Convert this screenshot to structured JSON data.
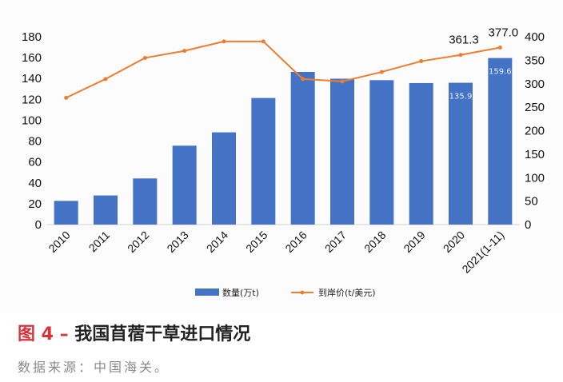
{
  "figure": {
    "number": "图 4 – ",
    "title": "我国苜蓿干草进口情况",
    "source": "数据来源：中国海关。"
  },
  "colors": {
    "bar": "#4472c4",
    "line": "#ed7d31"
  },
  "chart_data": {
    "type": "bar",
    "title": "",
    "categories": [
      "2010",
      "2011",
      "2012",
      "2013",
      "2014",
      "2015",
      "2016",
      "2017",
      "2018",
      "2019",
      "2020",
      "2021(1-11)"
    ],
    "y_left": {
      "ticks": [
        0,
        20,
        40,
        60,
        80,
        100,
        120,
        140,
        160,
        180
      ],
      "ylim": [
        0,
        180
      ]
    },
    "y_right": {
      "ticks": [
        0,
        50,
        100,
        150,
        200,
        250,
        300,
        350,
        400
      ],
      "ylim": [
        0,
        400
      ]
    },
    "grid": false,
    "legend_position": "bottom",
    "series": [
      {
        "name": "数量(万t)",
        "type": "bar",
        "axis": "left",
        "values": [
          22.7,
          27.9,
          44.2,
          75.6,
          88.4,
          121.3,
          146.3,
          139.8,
          138.4,
          135.6,
          135.9,
          159.6
        ],
        "labels": [
          "",
          "",
          "",
          "",
          "",
          "",
          "",
          "",
          "",
          "",
          "135.9",
          "159.6"
        ]
      },
      {
        "name": "到岸价(t/美元)",
        "type": "line",
        "axis": "right",
        "values": [
          270,
          310,
          355,
          370,
          390,
          390,
          310,
          305,
          325,
          348,
          361.3,
          377.0
        ],
        "labels": [
          "",
          "",
          "",
          "",
          "",
          "",
          "",
          "",
          "",
          "",
          "361.3",
          "377.0"
        ]
      }
    ]
  }
}
